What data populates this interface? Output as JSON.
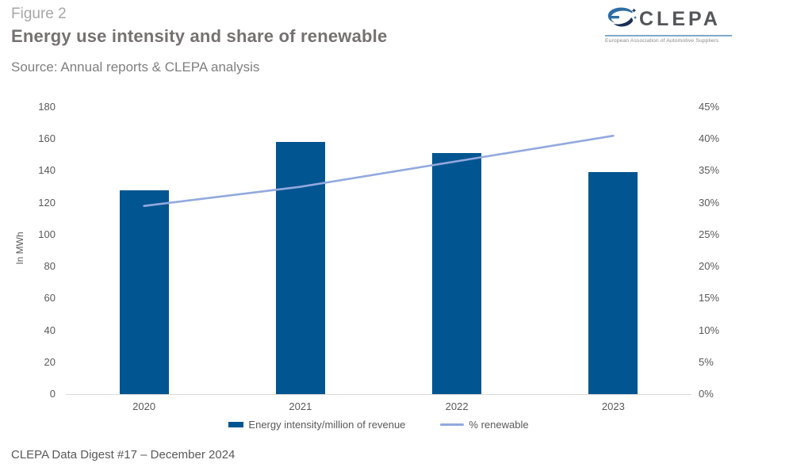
{
  "header": {
    "figure_label": "Figure 2",
    "title": "Energy use intensity and share of renewable",
    "source": "Source: Annual reports & CLEPA analysis"
  },
  "logo": {
    "wordmark": "CLEPA",
    "tagline": "European Association of Automotive Suppliers"
  },
  "footer": {
    "text": "CLEPA Data Digest #17 – December 2024"
  },
  "colors": {
    "bar": "#015590",
    "line": "#92A9DF",
    "axis_text": "#595959",
    "baseline": "#D9D9D9",
    "title_text": "#767171",
    "figure_label_text": "#A7A7A7",
    "source_text": "#7F7F7F",
    "logo_text": "#54565A",
    "logo_blue": "#2E6DA4",
    "logo_navy": "#1A2E57"
  },
  "chart_data": {
    "type": "bar",
    "title": "Energy use intensity and share of renewable",
    "categories": [
      "2020",
      "2021",
      "2022",
      "2023"
    ],
    "series": [
      {
        "name": "Energy intensity/million of revenue",
        "type": "bar",
        "axis": "left",
        "values": [
          128,
          158,
          151,
          139
        ],
        "color": "#015590"
      },
      {
        "name": "% renewable",
        "type": "line",
        "axis": "right",
        "values": [
          29.5,
          32.5,
          36.5,
          40.5
        ],
        "color": "#92A9DF"
      }
    ],
    "left_axis": {
      "label": "In MWh",
      "min": 0,
      "max": 180,
      "step": 20,
      "ticks": [
        "0",
        "20",
        "40",
        "60",
        "80",
        "100",
        "120",
        "140",
        "160",
        "180"
      ]
    },
    "right_axis": {
      "label": "",
      "min": 0,
      "max": 45,
      "step": 5,
      "ticks": [
        "0%",
        "5%",
        "10%",
        "15%",
        "20%",
        "25%",
        "30%",
        "35%",
        "40%",
        "45%"
      ]
    },
    "grid": false,
    "legend_position": "bottom"
  }
}
